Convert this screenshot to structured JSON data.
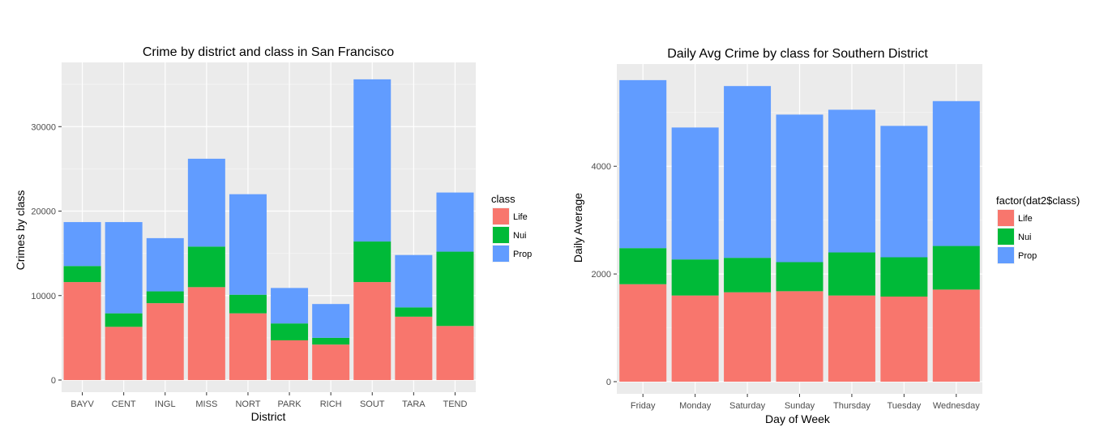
{
  "chart_data": [
    {
      "type": "bar",
      "stacked": true,
      "title": "Crime by district and class in San Francisco",
      "xlabel": "District",
      "ylabel": "Crimes by class",
      "categories": [
        "BAYV",
        "CENT",
        "INGL",
        "MISS",
        "NORT",
        "PARK",
        "RICH",
        "SOUT",
        "TARA",
        "TEND"
      ],
      "yticks": [
        0,
        10000,
        20000,
        30000
      ],
      "ylim": [
        0,
        37500
      ],
      "legend": {
        "title": "class",
        "placement": "right"
      },
      "grid": true,
      "series": [
        {
          "name": "Life",
          "color": "#F8766D",
          "values": [
            11600,
            6300,
            9100,
            11000,
            7900,
            4700,
            4200,
            11600,
            7500,
            6400
          ]
        },
        {
          "name": "Nui",
          "color": "#00BA38",
          "values": [
            1900,
            1600,
            1400,
            4800,
            2200,
            2000,
            800,
            4800,
            1100,
            8800
          ]
        },
        {
          "name": "Prop",
          "color": "#619CFF",
          "values": [
            5200,
            10800,
            6300,
            10400,
            11900,
            4200,
            4000,
            19200,
            6200,
            7000
          ]
        }
      ]
    },
    {
      "type": "bar",
      "stacked": true,
      "title": "Daily Avg Crime by class for Southern District",
      "xlabel": "Day of Week",
      "ylabel": "Daily Average",
      "categories": [
        "Friday",
        "Monday",
        "Saturday",
        "Sunday",
        "Thursday",
        "Tuesday",
        "Wednesday"
      ],
      "yticks": [
        0,
        2000,
        4000
      ],
      "ylim": [
        0,
        5900
      ],
      "legend": {
        "title": "factor(dat2$class)",
        "placement": "right"
      },
      "grid": true,
      "series": [
        {
          "name": "Life",
          "color": "#F8766D",
          "values": [
            1810,
            1600,
            1660,
            1680,
            1600,
            1580,
            1710
          ]
        },
        {
          "name": "Nui",
          "color": "#00BA38",
          "values": [
            670,
            670,
            640,
            540,
            800,
            730,
            810
          ]
        },
        {
          "name": "Prop",
          "color": "#619CFF",
          "values": [
            3120,
            2450,
            3190,
            2740,
            2650,
            2440,
            2690
          ]
        }
      ]
    }
  ]
}
